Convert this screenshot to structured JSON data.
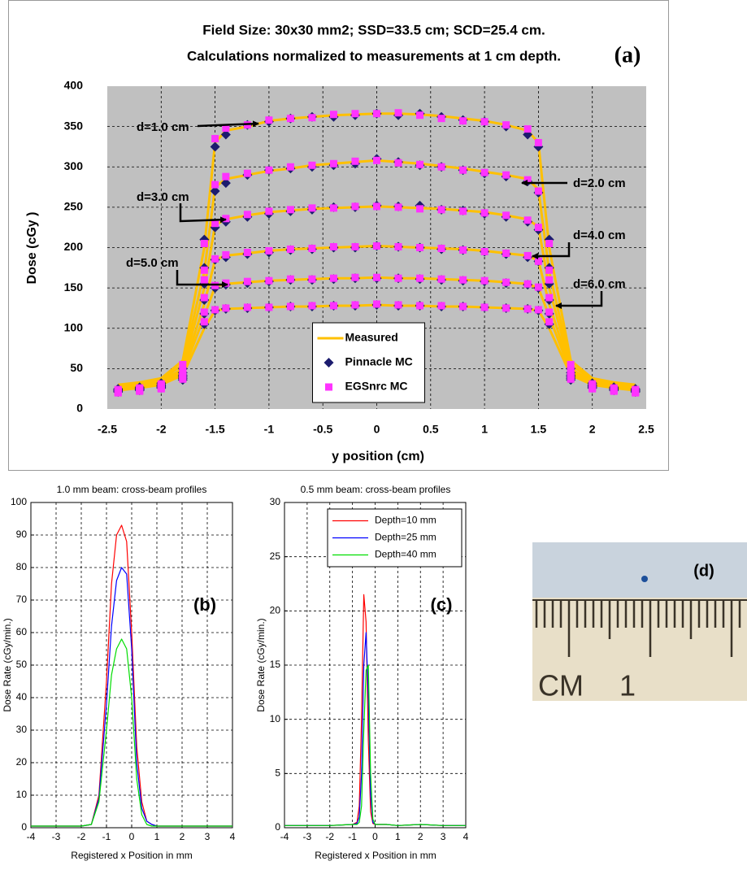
{
  "chart_data": [
    {
      "type": "line",
      "title": "Field Size: 30x30 mm2; SSD=33.5 cm; SCD=25.4 cm.",
      "subtitle": "Calculations normalized to measurements at 1 cm depth.",
      "panel_label": "(a)",
      "x_label": "y position (cm)",
      "y_label": "Dose (cGy )",
      "xlim": [
        -2.5,
        2.5
      ],
      "xticks": [
        -2.5,
        -2,
        -1.5,
        -1,
        -0.5,
        0,
        0.5,
        1,
        1.5,
        2,
        2.5
      ],
      "ylim": [
        0,
        400
      ],
      "yticks": [
        0,
        50,
        100,
        150,
        200,
        250,
        300,
        350,
        400
      ],
      "grid": true,
      "legend": "lower center",
      "background": "#c0c0c0",
      "annotations": [
        "d=1.0 cm",
        "d=2.0 cm",
        "d=3.0 cm",
        "d=4.0 cm",
        "d=5.0 cm",
        "d=6.0 cm"
      ],
      "x": [
        -2.4,
        -2.2,
        -2,
        -1.8,
        -1.6,
        -1.5,
        -1.4,
        -1.2,
        -1,
        -0.8,
        -0.6,
        -0.4,
        -0.2,
        0,
        0.2,
        0.4,
        0.6,
        0.8,
        1,
        1.2,
        1.4,
        1.5,
        1.6,
        1.8,
        2,
        2.2,
        2.4
      ],
      "series": [
        {
          "name": "Measured",
          "color": "#ffc000",
          "style": "line",
          "profiles": [
            [
              30,
              33,
              38,
              60,
              200,
              330,
              345,
              350,
              357,
              360,
              362,
              364,
              365,
              366,
              366,
              365,
              363,
              360,
              357,
              352,
              345,
              330,
              200,
              60,
              38,
              33,
              30
            ],
            [
              28,
              31,
              36,
              55,
              170,
              275,
              285,
              290,
              295,
              298,
              302,
              304,
              306,
              308,
              306,
              304,
              301,
              298,
              294,
              290,
              285,
              272,
              170,
              55,
              36,
              31,
              28
            ],
            [
              26,
              29,
              34,
              50,
              150,
              228,
              235,
              240,
              244,
              246,
              248,
              249,
              250,
              251,
              250,
              249,
              248,
              246,
              244,
              240,
              235,
              226,
              150,
              50,
              34,
              29,
              26
            ],
            [
              25,
              28,
              32,
              47,
              130,
              185,
              190,
              193,
              196,
              198,
              199,
              200,
              201,
              202,
              201,
              200,
              199,
              198,
              196,
              193,
              190,
              184,
              130,
              47,
              32,
              28,
              25
            ],
            [
              24,
              27,
              31,
              45,
              115,
              152,
              155,
              157,
              159,
              160,
              161,
              162,
              162,
              163,
              162,
              162,
              161,
              160,
              159,
              157,
              155,
              150,
              115,
              45,
              31,
              27,
              24
            ],
            [
              23,
              26,
              30,
              42,
              100,
              122,
              124,
              125,
              126,
              127,
              127,
              128,
              128,
              129,
              128,
              128,
              127,
              127,
              126,
              125,
              124,
              122,
              100,
              42,
              30,
              26,
              23
            ]
          ]
        },
        {
          "name": "Pinnacle MC",
          "color": "#1c1c6e",
          "style": "marker",
          "marker": "diamond",
          "profiles": [
            [
              25,
              27,
              32,
              50,
              210,
              325,
              340,
              352,
              356,
              360,
              362,
              362,
              364,
              366,
              364,
              366,
              362,
              358,
              356,
              350,
              340,
              325,
              210,
              50,
              32,
              27,
              25
            ],
            [
              24,
              26,
              30,
              45,
              175,
              270,
              280,
              290,
              296,
              298,
              300,
              302,
              304,
              310,
              306,
              302,
              300,
              296,
              292,
              288,
              282,
              268,
              175,
              45,
              30,
              26,
              24
            ],
            [
              23,
              25,
              29,
              42,
              155,
              225,
              232,
              238,
              242,
              245,
              247,
              250,
              250,
              252,
              251,
              252,
              247,
              246,
              242,
              238,
              232,
              222,
              155,
              42,
              29,
              25,
              23
            ],
            [
              22,
              24,
              28,
              40,
              135,
              185,
              188,
              192,
              194,
              197,
              198,
              200,
              200,
              202,
              201,
              200,
              198,
              197,
              195,
              192,
              188,
              183,
              135,
              40,
              28,
              24,
              22
            ],
            [
              22,
              24,
              27,
              38,
              118,
              150,
              154,
              156,
              158,
              160,
              160,
              161,
              162,
              162,
              162,
              161,
              160,
              159,
              158,
              156,
              154,
              150,
              118,
              38,
              27,
              24,
              22
            ],
            [
              21,
              23,
              26,
              36,
              105,
              122,
              124,
              125,
              126,
              127,
              127,
              128,
              128,
              129,
              128,
              128,
              127,
              127,
              126,
              125,
              124,
              122,
              105,
              36,
              26,
              23,
              21
            ]
          ]
        },
        {
          "name": "EGSnrc MC",
          "color": "#ff33ff",
          "style": "marker",
          "marker": "square",
          "profiles": [
            [
              24,
              26,
              31,
              55,
              205,
              335,
              348,
              352,
              358,
              360,
              361,
              365,
              366,
              366,
              367,
              364,
              360,
              357,
              356,
              352,
              347,
              330,
              205,
              55,
              31,
              26,
              24
            ],
            [
              23,
              25,
              29,
              48,
              172,
              278,
              288,
              292,
              296,
              300,
              302,
              304,
              307,
              308,
              305,
              303,
              300,
              296,
              293,
              290,
              284,
              270,
              172,
              48,
              29,
              25,
              23
            ],
            [
              22,
              24,
              28,
              44,
              160,
              230,
              236,
              241,
              245,
              247,
              249,
              249,
              251,
              251,
              250,
              248,
              247,
              245,
              243,
              240,
              234,
              225,
              160,
              44,
              28,
              24,
              22
            ],
            [
              21,
              23,
              27,
              41,
              138,
              186,
              191,
              194,
              196,
              198,
              199,
              201,
              201,
              202,
              201,
              200,
              199,
              197,
              195,
              193,
              190,
              183,
              138,
              41,
              27,
              23,
              21
            ],
            [
              21,
              23,
              26,
              39,
              120,
              153,
              156,
              158,
              159,
              161,
              161,
              162,
              163,
              163,
              162,
              162,
              161,
              160,
              159,
              157,
              155,
              151,
              120,
              39,
              26,
              23,
              21
            ],
            [
              20,
              22,
              25,
              37,
              108,
              123,
              125,
              126,
              126,
              127,
              128,
              128,
              129,
              130,
              129,
              128,
              128,
              127,
              126,
              125,
              124,
              123,
              108,
              37,
              25,
              22,
              20
            ]
          ]
        }
      ]
    },
    {
      "type": "line",
      "title": "1.0 mm beam: cross-beam profiles",
      "panel_label": "(b)",
      "x_label": "Registered x Position in mm",
      "y_label": "Dose Rate (cGy/min.)",
      "xlim": [
        -4,
        4
      ],
      "xticks": [
        -4,
        -3,
        -2,
        -1,
        0,
        1,
        2,
        3,
        4
      ],
      "ylim": [
        0,
        100
      ],
      "yticks": [
        0,
        10,
        20,
        30,
        40,
        50,
        60,
        70,
        80,
        90,
        100
      ],
      "grid": true,
      "x": [
        -4,
        -3,
        -2,
        -1.6,
        -1.3,
        -1,
        -0.8,
        -0.6,
        -0.4,
        -0.2,
        0,
        0.2,
        0.4,
        0.6,
        0.8,
        1,
        1.5,
        2,
        3,
        4
      ],
      "series": [
        {
          "color": "#ff0000",
          "style": "line",
          "values": [
            0.5,
            0.5,
            0.5,
            1,
            10,
            45,
            75,
            90,
            93,
            88,
            60,
            25,
            8,
            2,
            1,
            0.5,
            0.5,
            0.5,
            0.5,
            0.5
          ]
        },
        {
          "color": "#0000ff",
          "style": "line",
          "values": [
            0.5,
            0.5,
            0.5,
            1,
            9,
            38,
            62,
            76,
            80,
            78,
            55,
            20,
            6,
            2,
            1,
            0.5,
            0.5,
            0.5,
            0.5,
            0.5
          ]
        },
        {
          "color": "#00dd00",
          "style": "line",
          "values": [
            0.5,
            0.5,
            0.5,
            1,
            8,
            30,
            47,
            55,
            58,
            55,
            40,
            15,
            4,
            1,
            0.5,
            0.5,
            0.5,
            0.5,
            0.5,
            0.5
          ]
        }
      ]
    },
    {
      "type": "line",
      "title": "0.5 mm beam: cross-beam profiles",
      "panel_label": "(c)",
      "x_label": "Registered x Position in mm",
      "y_label": "Dose Rate (cGy/min.)",
      "xlim": [
        -4,
        4
      ],
      "xticks": [
        -4,
        -3,
        -2,
        -1,
        0,
        1,
        2,
        3,
        4
      ],
      "ylim": [
        0,
        30
      ],
      "yticks": [
        0,
        5,
        10,
        15,
        20,
        25,
        30
      ],
      "grid": true,
      "legend": "upper right",
      "x": [
        -4,
        -3,
        -2,
        -1,
        -0.8,
        -0.7,
        -0.6,
        -0.5,
        -0.4,
        -0.3,
        -0.2,
        -0.1,
        0,
        0.5,
        1,
        2,
        3,
        4
      ],
      "series": [
        {
          "name": "Depth=10 mm",
          "color": "#ff0000",
          "style": "line",
          "values": [
            0.2,
            0.2,
            0.2,
            0.3,
            0.5,
            2,
            10,
            21.5,
            19,
            8,
            1.5,
            0.4,
            0.3,
            0.3,
            0.2,
            0.3,
            0.2,
            0.2
          ]
        },
        {
          "name": "Depth=25 mm",
          "color": "#0000ff",
          "style": "line",
          "values": [
            0.2,
            0.2,
            0.2,
            0.3,
            0.4,
            1,
            5,
            15,
            18,
            12,
            3,
            0.5,
            0.3,
            0.3,
            0.2,
            0.3,
            0.2,
            0.2
          ]
        },
        {
          "name": "Depth=40 mm",
          "color": "#00dd00",
          "style": "line",
          "values": [
            0.2,
            0.2,
            0.2,
            0.3,
            0.3,
            0.5,
            2,
            9,
            14.5,
            15,
            5,
            0.8,
            0.3,
            0.3,
            0.2,
            0.3,
            0.2,
            0.2
          ]
        }
      ]
    }
  ],
  "photo": {
    "panel_label": "(d)",
    "ruler_unit": "CM",
    "ruler_number": "1"
  }
}
